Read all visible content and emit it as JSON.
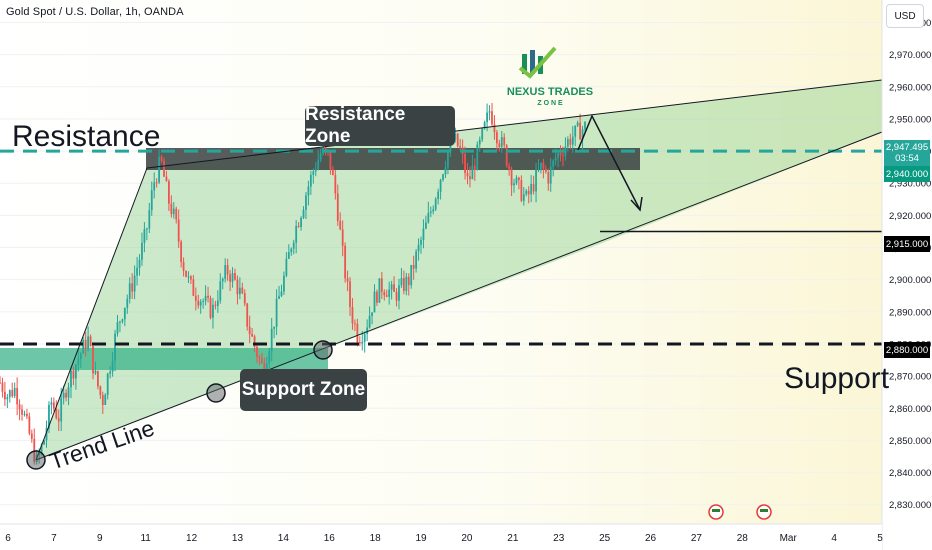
{
  "header": {
    "symbol_title": "Gold Spot / U.S. Dollar, 1h, OANDA",
    "currency_button": "USD"
  },
  "price_tags": {
    "current_price": "2,947.495",
    "countdown": "03:54",
    "level_2940": "2,940.000",
    "level_2915": "2,915.000",
    "level_2880": "2,880.000"
  },
  "annotations": {
    "resistance": "Resistance",
    "resistance_zone": "Resistance Zone",
    "support_zone": "Support Zone",
    "support": "Support",
    "trend_line": "Trend Line"
  },
  "logo": {
    "name": "NEXUS TRADES",
    "sub": "Z O N E"
  },
  "colors": {
    "up": "#26a69a",
    "down": "#ef5350",
    "wedge_fill": "#8fd18f",
    "zone_dark": "#3a3f3f",
    "zone_green": "#3bb38a",
    "dashed_green": "#26a69a"
  },
  "chart_data": {
    "type": "candlestick",
    "title": "Gold Spot / U.S. Dollar, 1h, OANDA",
    "y_ticks": [
      2830,
      2840,
      2850,
      2860,
      2870,
      2880,
      2890,
      2900,
      2910,
      2920,
      2930,
      2940,
      2950,
      2960,
      2970,
      2980
    ],
    "y_tick_labels": [
      "2,830.000",
      "2,840.000",
      "2,850.000",
      "2,860.000",
      "2,870.000",
      "2,880.000",
      "2,890.000",
      "2,900.000",
      "2,910.000",
      "2,920.000",
      "2,930.000",
      "2,940.000",
      "2,950.000",
      "2,960.000",
      "2,970.000",
      "2,980.000"
    ],
    "ylim": [
      2824,
      2987
    ],
    "x_tick_labels": [
      "6",
      "7",
      "9",
      "11",
      "12",
      "13",
      "14",
      "16",
      "18",
      "19",
      "20",
      "21",
      "23",
      "25",
      "26",
      "27",
      "28",
      "Mar",
      "4",
      "5"
    ],
    "horizontal_levels": [
      {
        "name": "resistance",
        "value": 2940,
        "style": "dashed"
      },
      {
        "name": "projection",
        "value": 2915,
        "style": "solid"
      },
      {
        "name": "support",
        "value": 2880,
        "style": "dashed"
      }
    ],
    "price_path": [
      2868,
      2864,
      2866,
      2860,
      2852,
      2843,
      2850,
      2862,
      2857,
      2866,
      2872,
      2877,
      2882,
      2870,
      2862,
      2873,
      2885,
      2892,
      2898,
      2906,
      2915,
      2930,
      2937,
      2925,
      2918,
      2905,
      2898,
      2895,
      2893,
      2890,
      2897,
      2903,
      2900,
      2895,
      2885,
      2878,
      2872,
      2882,
      2893,
      2902,
      2913,
      2920,
      2928,
      2935,
      2940,
      2938,
      2925,
      2905,
      2890,
      2882,
      2885,
      2893,
      2898,
      2897,
      2895,
      2898,
      2900,
      2908,
      2915,
      2922,
      2930,
      2938,
      2944,
      2940,
      2930,
      2937,
      2945,
      2953,
      2945,
      2940,
      2932,
      2928,
      2925,
      2930,
      2935,
      2932,
      2938,
      2941,
      2944,
      2946,
      2947.5
    ],
    "current_price": 2947.495
  }
}
